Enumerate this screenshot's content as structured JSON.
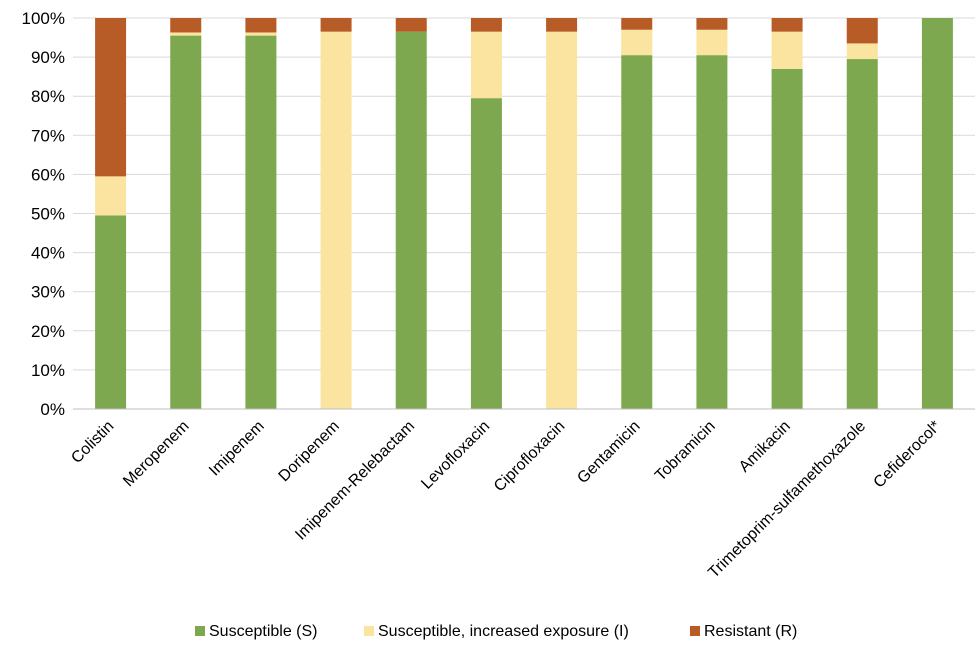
{
  "chart_data": {
    "type": "bar",
    "stacked": true,
    "title": "",
    "xlabel": "",
    "ylabel": "",
    "ylim": [
      0,
      100
    ],
    "y_ticks": [
      "0%",
      "10%",
      "20%",
      "30%",
      "40%",
      "50%",
      "60%",
      "70%",
      "80%",
      "90%",
      "100%"
    ],
    "grid": "horizontal",
    "legend_position": "bottom",
    "categories": [
      "Colistin",
      "Meropenem",
      "Imipenem",
      "Doripenem",
      "Imipenem-Relebactam",
      "Levofloxacin",
      "Ciprofloxacin",
      "Gentamicin",
      "Tobramicin",
      "Amikacin",
      "Trimetoprim-sulfamethoxazole",
      "Cefiderocol*"
    ],
    "series": [
      {
        "name": "Susceptible (S)",
        "color": "#7ea84f",
        "values": [
          49.5,
          95.5,
          95.5,
          0,
          96.5,
          79.5,
          0,
          90.5,
          90.5,
          87.0,
          89.5,
          100
        ]
      },
      {
        "name": "Susceptible, increased exposure (I)",
        "color": "#fae4a0",
        "values": [
          10.0,
          0.8,
          0.8,
          96.5,
          0,
          17.0,
          96.5,
          6.5,
          6.5,
          9.5,
          4.0,
          0
        ]
      },
      {
        "name": "Resistant (R)",
        "color": "#b85c27",
        "values": [
          40.5,
          3.7,
          3.7,
          3.5,
          3.5,
          3.5,
          3.5,
          3.0,
          3.0,
          3.5,
          6.5,
          0
        ]
      }
    ]
  }
}
